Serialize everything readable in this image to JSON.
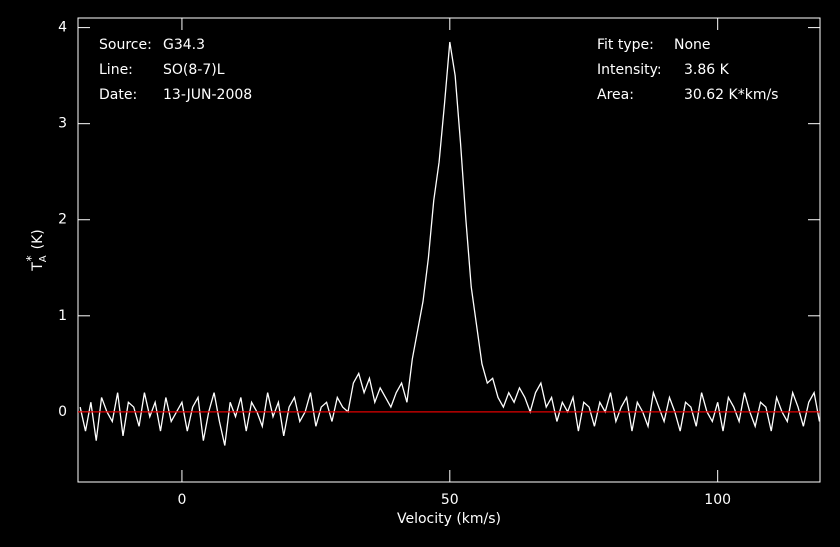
{
  "chart_data": {
    "type": "line",
    "x_label": "Velocity (km/s)",
    "y_label": {
      "symbol": "T",
      "subscript": "A",
      "superscript": "*",
      "unit": "(K)"
    },
    "annotations_left": [
      {
        "label": "Source:",
        "value": "G34.3"
      },
      {
        "label": "Line:",
        "value": "SO(8-7)L"
      },
      {
        "label": "Date:",
        "value": "13-JUN-2008"
      }
    ],
    "annotations_right": [
      {
        "label": "Fit type:",
        "value": "None"
      },
      {
        "label": "Intensity:",
        "value": "3.86 K"
      },
      {
        "label": "Area:",
        "value": "30.62 K*km/s"
      }
    ],
    "baseline": {
      "value": 0,
      "color": "#e00000"
    },
    "xlim": [
      -19.4,
      119.1
    ],
    "ylim": [
      -0.73,
      4.1
    ],
    "xticks": [
      0,
      50,
      100
    ],
    "yticks": [
      0,
      1,
      2,
      3,
      4
    ],
    "x": [
      -19,
      -18,
      -17,
      -16,
      -15,
      -14,
      -13,
      -12,
      -11,
      -10,
      -9,
      -8,
      -7,
      -6,
      -5,
      -4,
      -3,
      -2,
      -1,
      0,
      1,
      2,
      3,
      4,
      5,
      6,
      7,
      8,
      9,
      10,
      11,
      12,
      13,
      14,
      15,
      16,
      17,
      18,
      19,
      20,
      21,
      22,
      23,
      24,
      25,
      26,
      27,
      28,
      29,
      30,
      31,
      32,
      33,
      34,
      35,
      36,
      37,
      38,
      39,
      40,
      41,
      42,
      43,
      44,
      45,
      46,
      47,
      48,
      49,
      50,
      51,
      52,
      53,
      54,
      55,
      56,
      57,
      58,
      59,
      60,
      61,
      62,
      63,
      64,
      65,
      66,
      67,
      68,
      69,
      70,
      71,
      72,
      73,
      74,
      75,
      76,
      77,
      78,
      79,
      80,
      81,
      82,
      83,
      84,
      85,
      86,
      87,
      88,
      89,
      90,
      91,
      92,
      93,
      94,
      95,
      96,
      97,
      98,
      99,
      100,
      101,
      102,
      103,
      104,
      105,
      106,
      107,
      108,
      109,
      110,
      111,
      112,
      113,
      114,
      115,
      116,
      117,
      118,
      119
    ],
    "series": [
      {
        "name": "spectrum",
        "color": "#ffffff",
        "values": [
          0.05,
          -0.2,
          0.1,
          -0.3,
          0.15,
          0.0,
          -0.1,
          0.2,
          -0.25,
          0.1,
          0.05,
          -0.15,
          0.2,
          -0.05,
          0.1,
          -0.2,
          0.15,
          -0.1,
          0.0,
          0.1,
          -0.2,
          0.05,
          0.15,
          -0.3,
          0.0,
          0.2,
          -0.1,
          -0.35,
          0.1,
          -0.05,
          0.15,
          -0.2,
          0.1,
          0.0,
          -0.15,
          0.2,
          -0.05,
          0.1,
          -0.25,
          0.05,
          0.15,
          -0.1,
          0.0,
          0.2,
          -0.15,
          0.05,
          0.1,
          -0.1,
          0.15,
          0.05,
          0.0,
          0.3,
          0.4,
          0.2,
          0.35,
          0.1,
          0.25,
          0.15,
          0.05,
          0.2,
          0.3,
          0.1,
          0.55,
          0.85,
          1.15,
          1.6,
          2.2,
          2.6,
          3.2,
          3.85,
          3.5,
          2.8,
          2.0,
          1.3,
          0.9,
          0.5,
          0.3,
          0.35,
          0.15,
          0.05,
          0.2,
          0.1,
          0.25,
          0.15,
          0.0,
          0.2,
          0.3,
          0.05,
          0.15,
          -0.1,
          0.1,
          0.0,
          0.15,
          -0.2,
          0.1,
          0.05,
          -0.15,
          0.1,
          0.0,
          0.2,
          -0.1,
          0.05,
          0.15,
          -0.2,
          0.1,
          0.0,
          -0.15,
          0.2,
          0.05,
          -0.1,
          0.15,
          0.0,
          -0.2,
          0.1,
          0.05,
          -0.15,
          0.2,
          0.0,
          -0.1,
          0.1,
          -0.2,
          0.15,
          0.05,
          -0.1,
          0.2,
          0.0,
          -0.15,
          0.1,
          0.05,
          -0.2,
          0.15,
          0.0,
          -0.1,
          0.2,
          0.05,
          -0.15,
          0.1,
          0.2,
          -0.1
        ]
      }
    ]
  }
}
